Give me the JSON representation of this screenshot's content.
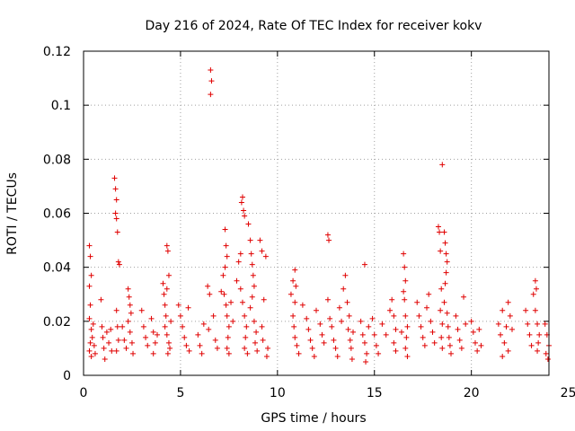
{
  "chart_data": {
    "type": "scatter",
    "title": "Day 216 of 2024, Rate Of TEC Index for receiver kokv",
    "xlabel": "GPS time / hours",
    "ylabel": "ROTI / TECUs",
    "xlim": [
      0,
      24
    ],
    "ylim": [
      0,
      0.12
    ],
    "grid": true,
    "marker": "+",
    "marker_color": "#e00000",
    "x_ticks": [
      0,
      5,
      10,
      15,
      20,
      25
    ],
    "x_tick_labels": [
      "0",
      "5",
      "10",
      "15",
      "20",
      "25"
    ],
    "y_ticks": [
      0,
      0.02,
      0.04,
      0.06,
      0.08,
      0.1,
      0.12
    ],
    "y_tick_labels": [
      "0",
      "0.02",
      "0.04",
      "0.06",
      "0.08",
      "0.1",
      "0.12"
    ],
    "series": [
      {
        "name": "ROTI",
        "points": [
          [
            0.3,
            0.048
          ],
          [
            0.35,
            0.044
          ],
          [
            0.4,
            0.037
          ],
          [
            0.3,
            0.033
          ],
          [
            0.35,
            0.026
          ],
          [
            0.3,
            0.021
          ],
          [
            0.4,
            0.017
          ],
          [
            0.35,
            0.012
          ],
          [
            0.3,
            0.009
          ],
          [
            0.4,
            0.007
          ],
          [
            0.45,
            0.014
          ],
          [
            0.5,
            0.019
          ],
          [
            0.55,
            0.011
          ],
          [
            0.6,
            0.008
          ],
          [
            0.9,
            0.028
          ],
          [
            0.95,
            0.018
          ],
          [
            1.0,
            0.014
          ],
          [
            1.05,
            0.01
          ],
          [
            1.1,
            0.006
          ],
          [
            1.2,
            0.016
          ],
          [
            1.3,
            0.012
          ],
          [
            1.4,
            0.017
          ],
          [
            1.45,
            0.009
          ],
          [
            1.6,
            0.073
          ],
          [
            1.65,
            0.069
          ],
          [
            1.7,
            0.065
          ],
          [
            1.65,
            0.06
          ],
          [
            1.7,
            0.058
          ],
          [
            1.75,
            0.053
          ],
          [
            1.8,
            0.042
          ],
          [
            1.85,
            0.041
          ],
          [
            1.7,
            0.024
          ],
          [
            1.75,
            0.018
          ],
          [
            1.8,
            0.013
          ],
          [
            1.7,
            0.009
          ],
          [
            2.0,
            0.018
          ],
          [
            2.1,
            0.013
          ],
          [
            2.2,
            0.01
          ],
          [
            2.3,
            0.032
          ],
          [
            2.35,
            0.029
          ],
          [
            2.4,
            0.026
          ],
          [
            2.45,
            0.023
          ],
          [
            2.3,
            0.02
          ],
          [
            2.4,
            0.016
          ],
          [
            2.5,
            0.012
          ],
          [
            2.55,
            0.008
          ],
          [
            3.0,
            0.024
          ],
          [
            3.1,
            0.018
          ],
          [
            3.2,
            0.014
          ],
          [
            3.3,
            0.011
          ],
          [
            3.5,
            0.021
          ],
          [
            3.6,
            0.016
          ],
          [
            3.7,
            0.012
          ],
          [
            3.6,
            0.008
          ],
          [
            3.8,
            0.015
          ],
          [
            4.1,
            0.034
          ],
          [
            4.15,
            0.03
          ],
          [
            4.2,
            0.026
          ],
          [
            4.3,
            0.048
          ],
          [
            4.35,
            0.046
          ],
          [
            4.4,
            0.037
          ],
          [
            4.3,
            0.032
          ],
          [
            4.25,
            0.022
          ],
          [
            4.2,
            0.018
          ],
          [
            4.3,
            0.015
          ],
          [
            4.4,
            0.012
          ],
          [
            4.35,
            0.008
          ],
          [
            4.5,
            0.02
          ],
          [
            4.45,
            0.01
          ],
          [
            4.9,
            0.026
          ],
          [
            5.0,
            0.022
          ],
          [
            5.1,
            0.018
          ],
          [
            5.2,
            0.014
          ],
          [
            5.3,
            0.011
          ],
          [
            5.4,
            0.025
          ],
          [
            5.45,
            0.009
          ],
          [
            5.9,
            0.015
          ],
          [
            6.0,
            0.011
          ],
          [
            6.1,
            0.008
          ],
          [
            6.2,
            0.019
          ],
          [
            6.4,
            0.033
          ],
          [
            6.5,
            0.03
          ],
          [
            6.45,
            0.017
          ],
          [
            6.55,
            0.113
          ],
          [
            6.6,
            0.109
          ],
          [
            6.55,
            0.104
          ],
          [
            6.7,
            0.022
          ],
          [
            6.8,
            0.013
          ],
          [
            6.9,
            0.01
          ],
          [
            7.1,
            0.031
          ],
          [
            7.2,
            0.037
          ],
          [
            7.3,
            0.054
          ],
          [
            7.35,
            0.048
          ],
          [
            7.4,
            0.044
          ],
          [
            7.3,
            0.04
          ],
          [
            7.25,
            0.03
          ],
          [
            7.35,
            0.026
          ],
          [
            7.4,
            0.022
          ],
          [
            7.5,
            0.018
          ],
          [
            7.45,
            0.014
          ],
          [
            7.4,
            0.01
          ],
          [
            7.5,
            0.008
          ],
          [
            7.6,
            0.027
          ],
          [
            7.7,
            0.02
          ],
          [
            7.9,
            0.035
          ],
          [
            8.0,
            0.042
          ],
          [
            8.1,
            0.045
          ],
          [
            8.15,
            0.064
          ],
          [
            8.2,
            0.066
          ],
          [
            8.25,
            0.061
          ],
          [
            8.3,
            0.059
          ],
          [
            8.1,
            0.032
          ],
          [
            8.2,
            0.027
          ],
          [
            8.3,
            0.022
          ],
          [
            8.4,
            0.018
          ],
          [
            8.35,
            0.014
          ],
          [
            8.3,
            0.01
          ],
          [
            8.45,
            0.008
          ],
          [
            8.5,
            0.056
          ],
          [
            8.6,
            0.05
          ],
          [
            8.65,
            0.045
          ],
          [
            8.7,
            0.041
          ],
          [
            8.75,
            0.037
          ],
          [
            8.8,
            0.033
          ],
          [
            8.7,
            0.029
          ],
          [
            8.6,
            0.025
          ],
          [
            8.8,
            0.02
          ],
          [
            8.9,
            0.016
          ],
          [
            8.85,
            0.012
          ],
          [
            8.95,
            0.009
          ],
          [
            9.1,
            0.05
          ],
          [
            9.2,
            0.046
          ],
          [
            9.3,
            0.028
          ],
          [
            9.2,
            0.018
          ],
          [
            9.25,
            0.013
          ],
          [
            9.4,
            0.044
          ],
          [
            9.5,
            0.01
          ],
          [
            9.45,
            0.007
          ],
          [
            10.7,
            0.03
          ],
          [
            10.8,
            0.035
          ],
          [
            10.9,
            0.039
          ],
          [
            10.95,
            0.033
          ],
          [
            10.9,
            0.027
          ],
          [
            10.8,
            0.022
          ],
          [
            10.85,
            0.018
          ],
          [
            10.9,
            0.014
          ],
          [
            11.0,
            0.011
          ],
          [
            11.1,
            0.008
          ],
          [
            11.3,
            0.026
          ],
          [
            11.5,
            0.021
          ],
          [
            11.6,
            0.017
          ],
          [
            11.7,
            0.013
          ],
          [
            11.8,
            0.01
          ],
          [
            11.9,
            0.007
          ],
          [
            12.0,
            0.024
          ],
          [
            12.2,
            0.019
          ],
          [
            12.3,
            0.015
          ],
          [
            12.4,
            0.012
          ],
          [
            12.6,
            0.052
          ],
          [
            12.65,
            0.05
          ],
          [
            12.6,
            0.028
          ],
          [
            12.7,
            0.021
          ],
          [
            12.8,
            0.018
          ],
          [
            12.9,
            0.013
          ],
          [
            13.0,
            0.01
          ],
          [
            13.1,
            0.007
          ],
          [
            13.2,
            0.025
          ],
          [
            13.3,
            0.02
          ],
          [
            13.4,
            0.032
          ],
          [
            13.5,
            0.037
          ],
          [
            13.6,
            0.027
          ],
          [
            13.7,
            0.022
          ],
          [
            13.65,
            0.017
          ],
          [
            13.75,
            0.013
          ],
          [
            13.8,
            0.01
          ],
          [
            13.85,
            0.006
          ],
          [
            13.9,
            0.016
          ],
          [
            14.3,
            0.02
          ],
          [
            14.4,
            0.015
          ],
          [
            14.5,
            0.041
          ],
          [
            14.5,
            0.012
          ],
          [
            14.6,
            0.008
          ],
          [
            14.55,
            0.005
          ],
          [
            14.7,
            0.018
          ],
          [
            14.9,
            0.021
          ],
          [
            15.0,
            0.015
          ],
          [
            15.1,
            0.011
          ],
          [
            15.2,
            0.008
          ],
          [
            15.4,
            0.019
          ],
          [
            15.6,
            0.015
          ],
          [
            15.8,
            0.024
          ],
          [
            15.9,
            0.028
          ],
          [
            16.0,
            0.022
          ],
          [
            16.1,
            0.017
          ],
          [
            16.0,
            0.012
          ],
          [
            16.1,
            0.009
          ],
          [
            16.5,
            0.045
          ],
          [
            16.55,
            0.04
          ],
          [
            16.6,
            0.035
          ],
          [
            16.5,
            0.031
          ],
          [
            16.55,
            0.028
          ],
          [
            16.6,
            0.022
          ],
          [
            16.7,
            0.018
          ],
          [
            16.65,
            0.014
          ],
          [
            16.6,
            0.01
          ],
          [
            16.7,
            0.007
          ],
          [
            16.4,
            0.016
          ],
          [
            17.2,
            0.027
          ],
          [
            17.3,
            0.022
          ],
          [
            17.4,
            0.018
          ],
          [
            17.5,
            0.014
          ],
          [
            17.6,
            0.011
          ],
          [
            17.7,
            0.025
          ],
          [
            17.8,
            0.03
          ],
          [
            17.9,
            0.02
          ],
          [
            18.0,
            0.016
          ],
          [
            18.1,
            0.012
          ],
          [
            18.3,
            0.055
          ],
          [
            18.35,
            0.053
          ],
          [
            18.4,
            0.046
          ],
          [
            18.45,
            0.032
          ],
          [
            18.5,
            0.078
          ],
          [
            18.4,
            0.024
          ],
          [
            18.5,
            0.019
          ],
          [
            18.45,
            0.014
          ],
          [
            18.5,
            0.01
          ],
          [
            18.6,
            0.053
          ],
          [
            18.65,
            0.049
          ],
          [
            18.7,
            0.045
          ],
          [
            18.75,
            0.042
          ],
          [
            18.7,
            0.038
          ],
          [
            18.65,
            0.034
          ],
          [
            18.6,
            0.027
          ],
          [
            18.75,
            0.023
          ],
          [
            18.8,
            0.018
          ],
          [
            18.85,
            0.014
          ],
          [
            18.9,
            0.011
          ],
          [
            18.95,
            0.008
          ],
          [
            19.2,
            0.022
          ],
          [
            19.3,
            0.017
          ],
          [
            19.4,
            0.013
          ],
          [
            19.5,
            0.01
          ],
          [
            19.6,
            0.029
          ],
          [
            19.7,
            0.019
          ],
          [
            20.0,
            0.02
          ],
          [
            20.1,
            0.016
          ],
          [
            20.2,
            0.012
          ],
          [
            20.3,
            0.009
          ],
          [
            20.4,
            0.017
          ],
          [
            20.5,
            0.011
          ],
          [
            21.4,
            0.019
          ],
          [
            21.5,
            0.015
          ],
          [
            21.6,
            0.024
          ],
          [
            21.7,
            0.012
          ],
          [
            21.8,
            0.018
          ],
          [
            21.9,
            0.027
          ],
          [
            22.0,
            0.022
          ],
          [
            22.1,
            0.017
          ],
          [
            21.9,
            0.009
          ],
          [
            21.6,
            0.007
          ],
          [
            22.8,
            0.024
          ],
          [
            22.9,
            0.019
          ],
          [
            23.0,
            0.015
          ],
          [
            23.1,
            0.011
          ],
          [
            23.2,
            0.03
          ],
          [
            23.3,
            0.035
          ],
          [
            23.35,
            0.032
          ],
          [
            23.3,
            0.024
          ],
          [
            23.4,
            0.019
          ],
          [
            23.5,
            0.015
          ],
          [
            23.45,
            0.012
          ],
          [
            23.4,
            0.009
          ],
          [
            23.8,
            0.019
          ],
          [
            23.9,
            0.015
          ],
          [
            24.0,
            0.011
          ],
          [
            23.85,
            0.008
          ],
          [
            23.95,
            0.006
          ]
        ]
      }
    ]
  }
}
